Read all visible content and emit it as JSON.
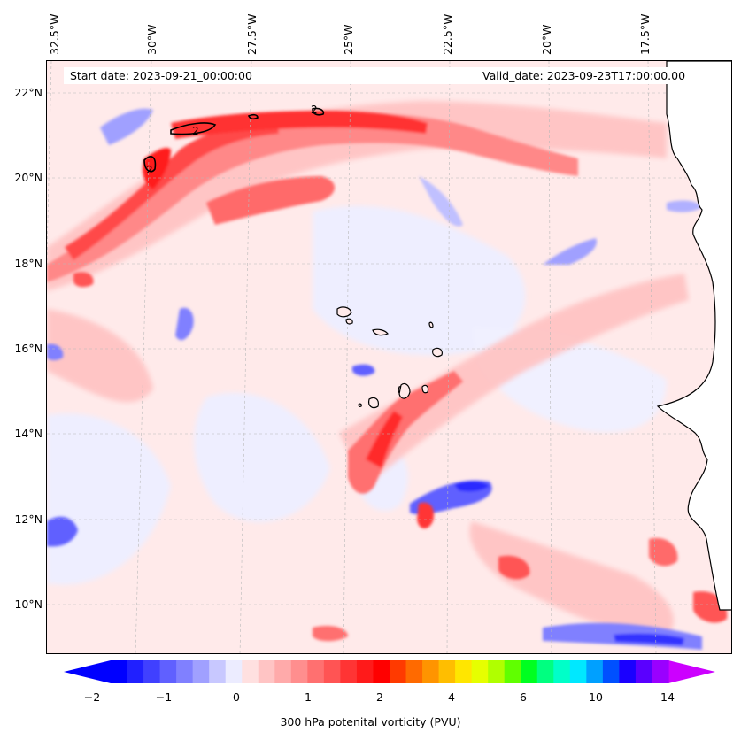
{
  "header": {
    "start_date": "Start date: 2023-09-21_00:00:00",
    "valid_date": "Valid_date: 2023-09-23T17:00:00.00"
  },
  "axes": {
    "lon_labels": [
      "32.5°W",
      "30°W",
      "27.5°W",
      "25°W",
      "22.5°W",
      "20°W",
      "17.5°W"
    ],
    "lat_labels": [
      "22°N",
      "20°N",
      "18°N",
      "16°N",
      "14°N",
      "12°N",
      "10°N"
    ]
  },
  "colorbar": {
    "title": "300 hPa potenital vorticity (PVU)",
    "tick_labels": [
      "−2",
      "−1",
      "0",
      "1",
      "2",
      "4",
      "6",
      "10",
      "14"
    ],
    "colors": [
      "#0000ff",
      "#2020ff",
      "#4040ff",
      "#6060ff",
      "#8080ff",
      "#a0a0ff",
      "#c8c8ff",
      "#ececff",
      "#ffe0e0",
      "#ffc4c4",
      "#ffaaaa",
      "#ff8e8e",
      "#ff7070",
      "#ff5454",
      "#ff3434",
      "#ff1a1a",
      "#ff0000",
      "#ff3a00",
      "#ff6a00",
      "#ff9400",
      "#ffbe00",
      "#ffe600",
      "#e6ff00",
      "#b0ff00",
      "#60ff00",
      "#00ff20",
      "#00ff80",
      "#00ffc8",
      "#00e8ff",
      "#00a0ff",
      "#0050ff",
      "#1a00ff",
      "#5a00ff",
      "#9a00ff"
    ],
    "arrow_left_color": "#0000ff",
    "arrow_right_color": "#cc00ff"
  },
  "map": {
    "contour_label": "2",
    "land_color": "#ffffff",
    "background_color": "#ffeaea"
  }
}
